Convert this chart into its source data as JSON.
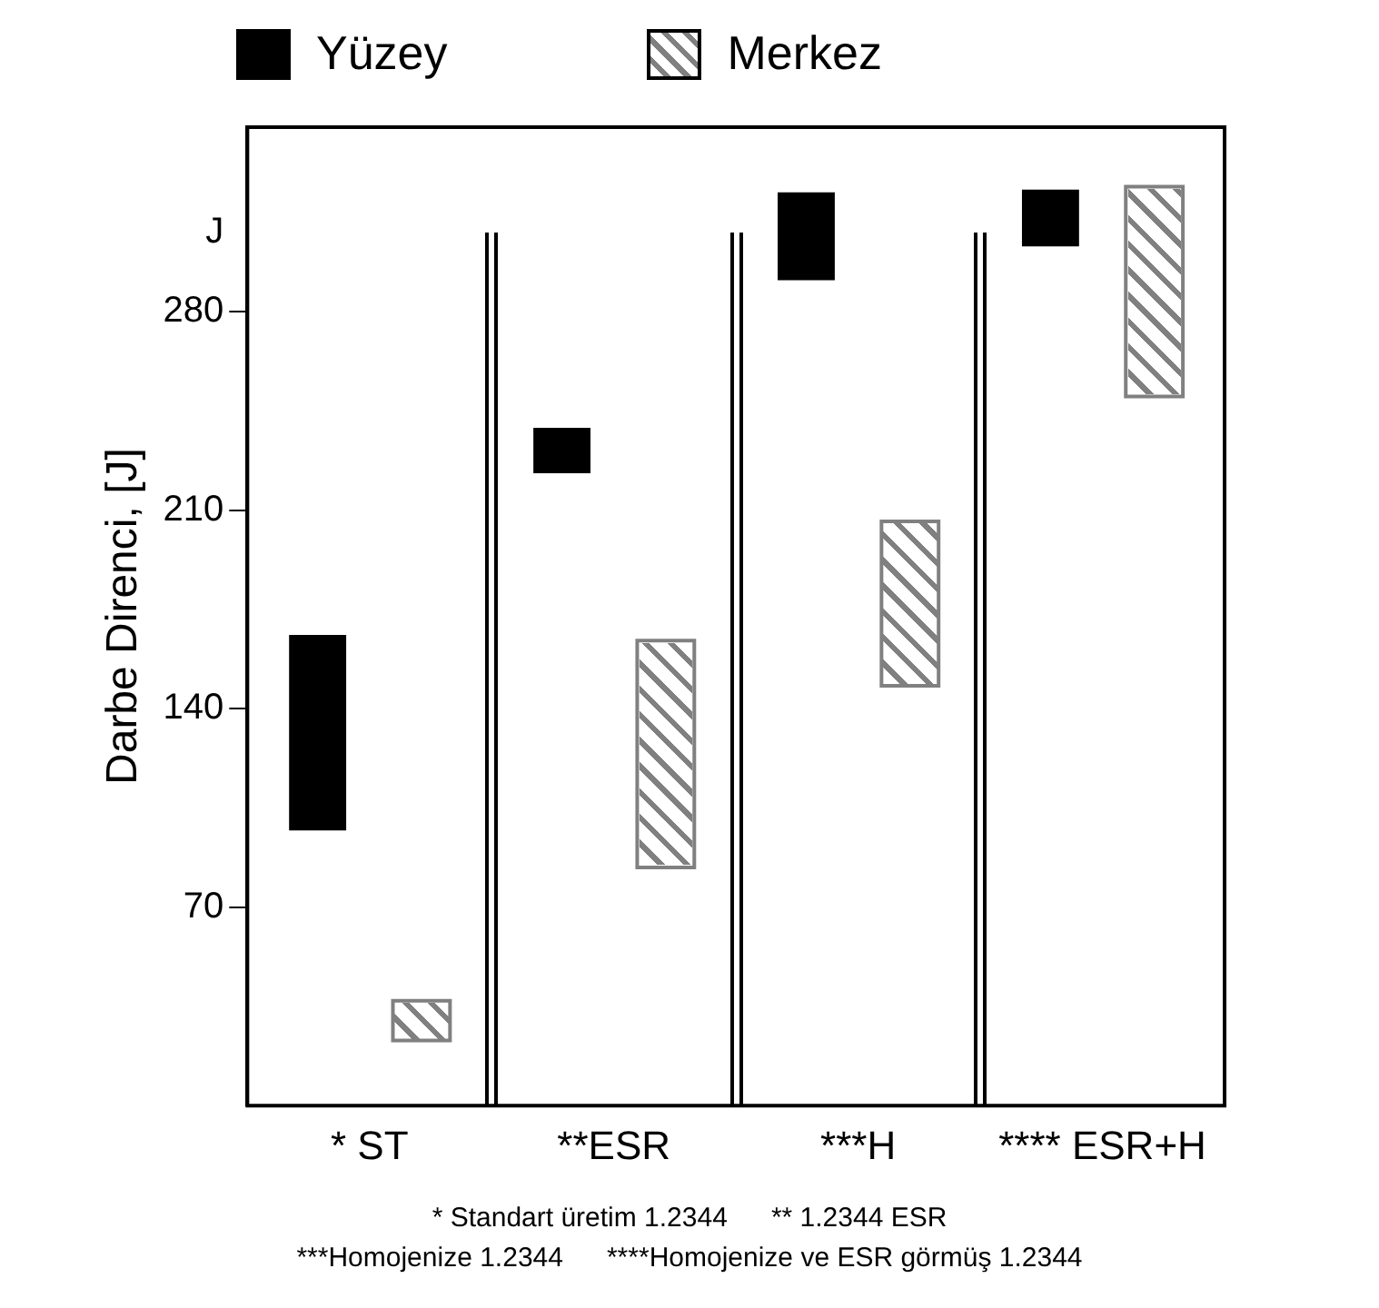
{
  "chart_data": {
    "type": "bar",
    "ylabel": "Darbe Direnci, [J]",
    "categories": [
      "* ST",
      "**ESR",
      "***H",
      "**** ESR+H"
    ],
    "series": [
      {
        "name": "Yüzey",
        "color": "#000000",
        "base": [
          97,
          223,
          291,
          303
        ],
        "values": [
          69,
          16,
          31,
          20
        ]
      },
      {
        "name": "Merkez",
        "color": "#808080",
        "base": [
          23,
          84,
          148,
          250
        ],
        "values": [
          14,
          80,
          58,
          74
        ]
      }
    ],
    "ylim": [
      0,
      345
    ],
    "yticks": [
      70,
      140,
      210,
      280,
      {
        "value": 308,
        "label": "J"
      }
    ],
    "grid": false,
    "legend": "top left",
    "annotations": [
      "* Standart üretim 1.2344",
      "** 1.2344 ESR",
      "***Homojenize 1.2344",
      "****Homojenize ve ESR görmüş 1.2344"
    ]
  }
}
